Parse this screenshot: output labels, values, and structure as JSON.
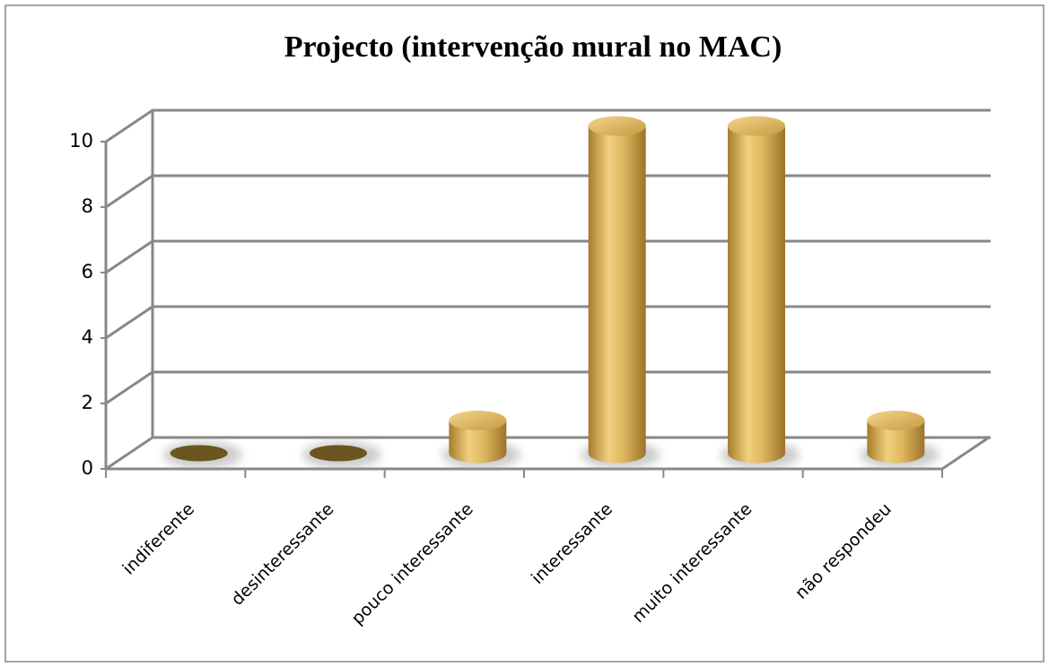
{
  "chart_data": {
    "type": "bar",
    "title": "Projecto (intervenção mural no MAC)",
    "categories": [
      "indiferente",
      "desinteressante",
      "pouco interessante",
      "interessante",
      "muito interessante",
      "não respondeu"
    ],
    "values": [
      0,
      0,
      1,
      10,
      10,
      1
    ],
    "color": "#d4aa50",
    "ylim": [
      0,
      10
    ],
    "yticks": [
      0,
      2,
      4,
      6,
      8,
      10
    ],
    "grid": true
  }
}
